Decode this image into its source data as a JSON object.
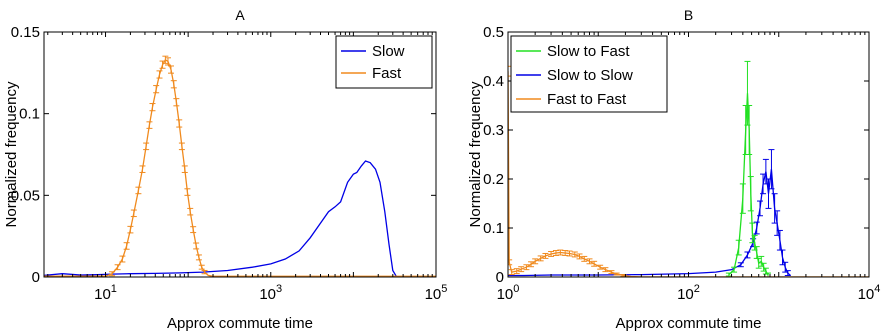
{
  "colors": {
    "slow": "#0000e6",
    "fast": "#f08a1e",
    "slow_to_fast": "#22e022",
    "axis": "#000000"
  },
  "chart_data": [
    {
      "id": "A",
      "type": "line",
      "title": "A",
      "xlabel": "Approx commute time",
      "ylabel": "Normalized frequency",
      "xscale": "log",
      "xlim": [
        1.8,
        100000
      ],
      "ylim": [
        0,
        0.15
      ],
      "xticks": [
        {
          "v": 10,
          "label": "10",
          "sup": "1"
        },
        {
          "v": 1000,
          "label": "10",
          "sup": "3"
        },
        {
          "v": 100000,
          "label": "10",
          "sup": "5"
        }
      ],
      "yticks": [
        {
          "v": 0,
          "label": "0"
        },
        {
          "v": 0.05,
          "label": "0.05"
        },
        {
          "v": 0.1,
          "label": "0.1"
        },
        {
          "v": 0.15,
          "label": "0.15"
        }
      ],
      "legend": {
        "placement": "top-right",
        "entries": [
          {
            "name": "Slow",
            "color_key": "slow"
          },
          {
            "name": "Fast",
            "color_key": "fast"
          }
        ]
      },
      "series": [
        {
          "name": "Slow",
          "color_key": "slow",
          "errorbars": false,
          "points": [
            [
              1.8,
              0.001
            ],
            [
              3,
              0.002
            ],
            [
              5,
              0.0012
            ],
            [
              8,
              0.0015
            ],
            [
              12,
              0.0018
            ],
            [
              20,
              0.002
            ],
            [
              40,
              0.0022
            ],
            [
              80,
              0.0025
            ],
            [
              150,
              0.003
            ],
            [
              300,
              0.004
            ],
            [
              600,
              0.006
            ],
            [
              1000,
              0.008
            ],
            [
              1500,
              0.011
            ],
            [
              2200,
              0.016
            ],
            [
              3000,
              0.024
            ],
            [
              4000,
              0.033
            ],
            [
              5000,
              0.04
            ],
            [
              6000,
              0.043
            ],
            [
              7000,
              0.046
            ],
            [
              8500,
              0.058
            ],
            [
              10000,
              0.063
            ],
            [
              11000,
              0.064
            ],
            [
              12500,
              0.068
            ],
            [
              14000,
              0.071
            ],
            [
              16000,
              0.07
            ],
            [
              18500,
              0.066
            ],
            [
              21000,
              0.058
            ],
            [
              24000,
              0.04
            ],
            [
              27000,
              0.02
            ],
            [
              30000,
              0.004
            ],
            [
              33000,
              0.0005
            ]
          ]
        },
        {
          "name": "Fast",
          "color_key": "fast",
          "errorbars": true,
          "points": [
            [
              1.8,
              0.0005
            ],
            [
              10,
              0.0005
            ],
            [
              12,
              0.002
            ],
            [
              14,
              0.006
            ],
            [
              16,
              0.011
            ],
            [
              18,
              0.019
            ],
            [
              20,
              0.029
            ],
            [
              22,
              0.039
            ],
            [
              25,
              0.053
            ],
            [
              28,
              0.066
            ],
            [
              31,
              0.08
            ],
            [
              34,
              0.093
            ],
            [
              37,
              0.104
            ],
            [
              41,
              0.115
            ],
            [
              45,
              0.124
            ],
            [
              49,
              0.13
            ],
            [
              53,
              0.133
            ],
            [
              57,
              0.132
            ],
            [
              62,
              0.127
            ],
            [
              67,
              0.118
            ],
            [
              72,
              0.107
            ],
            [
              78,
              0.094
            ],
            [
              84,
              0.08
            ],
            [
              91,
              0.066
            ],
            [
              98,
              0.052
            ],
            [
              106,
              0.04
            ],
            [
              115,
              0.029
            ],
            [
              125,
              0.019
            ],
            [
              135,
              0.012
            ],
            [
              146,
              0.006
            ],
            [
              158,
              0.003
            ],
            [
              175,
              0.001
            ],
            [
              200,
              0.0004
            ],
            [
              100000,
              0.0004
            ]
          ],
          "errors": [
            0,
            0,
            0.0012,
            0.0015,
            0.0018,
            0.002,
            0.002,
            0.002,
            0.002,
            0.002,
            0.002,
            0.002,
            0.0022,
            0.0022,
            0.0022,
            0.0022,
            0.0022,
            0.0022,
            0.0022,
            0.0022,
            0.0022,
            0.0022,
            0.002,
            0.002,
            0.002,
            0.002,
            0.0018,
            0.0018,
            0.0015,
            0.0012,
            0.001,
            0,
            0,
            0
          ]
        }
      ]
    },
    {
      "id": "B",
      "type": "line",
      "title": "B",
      "xlabel": "Approx commute time",
      "ylabel": "Normalized frequency",
      "xscale": "log",
      "xlim": [
        1,
        10000
      ],
      "ylim": [
        0,
        0.5
      ],
      "xticks": [
        {
          "v": 1,
          "label": "10",
          "sup": "0"
        },
        {
          "v": 100,
          "label": "10",
          "sup": "2"
        },
        {
          "v": 10000,
          "label": "10",
          "sup": "4"
        }
      ],
      "yticks": [
        {
          "v": 0,
          "label": "0"
        },
        {
          "v": 0.1,
          "label": "0.1"
        },
        {
          "v": 0.2,
          "label": "0.2"
        },
        {
          "v": 0.3,
          "label": "0.3"
        },
        {
          "v": 0.4,
          "label": "0.4"
        },
        {
          "v": 0.5,
          "label": "0.5"
        }
      ],
      "legend": {
        "placement": "top-left",
        "entries": [
          {
            "name": "Slow to Fast",
            "color_key": "slow_to_fast"
          },
          {
            "name": "Slow to Slow",
            "color_key": "slow"
          },
          {
            "name": "Fast to Fast",
            "color_key": "fast"
          }
        ]
      },
      "series": [
        {
          "name": "Slow to Slow",
          "color_key": "slow",
          "errorbars": true,
          "points": [
            [
              1,
              0.003
            ],
            [
              1.5,
              0.003
            ],
            [
              3,
              0.004
            ],
            [
              10,
              0.004
            ],
            [
              30,
              0.005
            ],
            [
              100,
              0.007
            ],
            [
              200,
              0.01
            ],
            [
              300,
              0.015
            ],
            [
              380,
              0.025
            ],
            [
              450,
              0.045
            ],
            [
              520,
              0.07
            ],
            [
              570,
              0.1
            ],
            [
              620,
              0.14
            ],
            [
              670,
              0.19
            ],
            [
              720,
              0.215
            ],
            [
              770,
              0.17
            ],
            [
              830,
              0.22
            ],
            [
              900,
              0.14
            ],
            [
              960,
              0.11
            ],
            [
              1030,
              0.075
            ],
            [
              1100,
              0.04
            ],
            [
              1180,
              0.02
            ],
            [
              1260,
              0.008
            ],
            [
              1350,
              0.003
            ]
          ],
          "errors": [
            0,
            0,
            0,
            0,
            0,
            0,
            0,
            0,
            0.004,
            0.006,
            0.008,
            0.012,
            0.015,
            0.02,
            0.025,
            0.03,
            0.04,
            0.03,
            0.025,
            0.02,
            0.015,
            0.01,
            0.005,
            0
          ]
        },
        {
          "name": "Slow to Fast",
          "color_key": "slow_to_fast",
          "errorbars": true,
          "points": [
            [
              280,
              0.005
            ],
            [
              320,
              0.015
            ],
            [
              360,
              0.06
            ],
            [
              400,
              0.16
            ],
            [
              430,
              0.3
            ],
            [
              450,
              0.375
            ],
            [
              470,
              0.3
            ],
            [
              490,
              0.17
            ],
            [
              510,
              0.09
            ],
            [
              540,
              0.07
            ],
            [
              570,
              0.05
            ],
            [
              600,
              0.028
            ],
            [
              640,
              0.032
            ],
            [
              680,
              0.02
            ],
            [
              720,
              0.012
            ],
            [
              760,
              0.004
            ]
          ],
          "errors": [
            0.003,
            0.005,
            0.015,
            0.03,
            0.05,
            0.065,
            0.05,
            0.035,
            0.02,
            0.015,
            0.012,
            0.01,
            0.01,
            0.008,
            0.006,
            0.004
          ]
        },
        {
          "name": "Fast to Fast",
          "color_key": "fast",
          "errorbars": true,
          "points": [
            [
              1,
              0.42
            ],
            [
              1.03,
              0.03
            ],
            [
              1.1,
              0.01
            ],
            [
              1.25,
              0.012
            ],
            [
              1.4,
              0.016
            ],
            [
              1.6,
              0.02
            ],
            [
              1.8,
              0.026
            ],
            [
              2,
              0.032
            ],
            [
              2.3,
              0.038
            ],
            [
              2.6,
              0.043
            ],
            [
              3,
              0.047
            ],
            [
              3.4,
              0.049
            ],
            [
              3.8,
              0.05
            ],
            [
              4.3,
              0.049
            ],
            [
              4.8,
              0.048
            ],
            [
              5.5,
              0.046
            ],
            [
              6.2,
              0.042
            ],
            [
              7,
              0.037
            ],
            [
              8,
              0.032
            ],
            [
              9,
              0.027
            ],
            [
              10.5,
              0.02
            ],
            [
              12,
              0.015
            ],
            [
              14,
              0.01
            ],
            [
              16,
              0.006
            ],
            [
              19,
              0.003
            ],
            [
              23,
              0.001
            ],
            [
              30,
              0.0003
            ],
            [
              10000,
              0.0002
            ]
          ],
          "errors": [
            0.01,
            0.005,
            0.005,
            0.005,
            0.005,
            0.005,
            0.005,
            0.005,
            0.005,
            0.005,
            0.005,
            0.005,
            0.005,
            0.005,
            0.005,
            0.005,
            0.005,
            0.005,
            0.005,
            0.005,
            0.004,
            0.004,
            0.003,
            0.002,
            0.002,
            0,
            0,
            0
          ]
        }
      ]
    }
  ]
}
